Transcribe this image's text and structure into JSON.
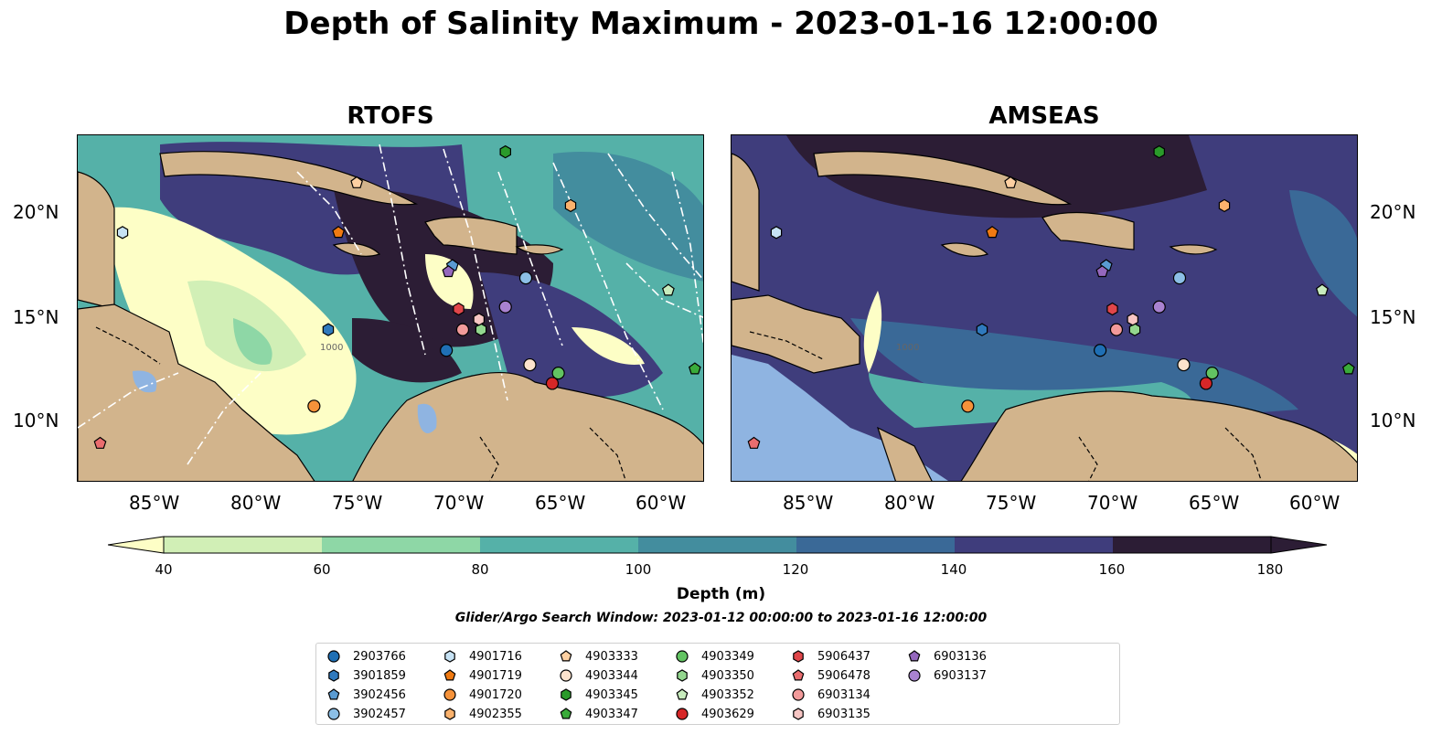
{
  "title": "Depth of Salinity Maximum - 2023-01-16 12:00:00",
  "panels": [
    {
      "title": "RTOFS"
    },
    {
      "title": "AMSEAS"
    }
  ],
  "axes": {
    "lon_ticks": [
      "85°W",
      "80°W",
      "75°W",
      "70°W",
      "65°W",
      "60°W"
    ],
    "lat_ticks": [
      "20°N",
      "15°N",
      "10°N"
    ]
  },
  "colorbar": {
    "title": "Depth (m)",
    "ticks": [
      "40",
      "60",
      "80",
      "100",
      "120",
      "140",
      "160",
      "180"
    ],
    "colors": [
      "#fdfec6",
      "#d1efb6",
      "#8ed7a6",
      "#55b1a8",
      "#438d9e",
      "#3a6997",
      "#3f3d7c",
      "#2c1d35"
    ]
  },
  "search_window": "Glider/Argo Search Window: 2023-01-12 00:00:00 to 2023-01-16 12:00:00",
  "contour_label": "1000",
  "legend": [
    {
      "label": "2903766",
      "marker": "circle",
      "color": "#1f6fb4"
    },
    {
      "label": "3901859",
      "marker": "hexagon",
      "color": "#2f79bd"
    },
    {
      "label": "3902456",
      "marker": "pentagon",
      "color": "#5a9bd2"
    },
    {
      "label": "3902457",
      "marker": "circle",
      "color": "#8cbfe6"
    },
    {
      "label": "4901716",
      "marker": "hexagon",
      "color": "#c6e2f4"
    },
    {
      "label": "4901719",
      "marker": "pentagon",
      "color": "#f07a12"
    },
    {
      "label": "4901720",
      "marker": "circle",
      "color": "#f5923a"
    },
    {
      "label": "4902355",
      "marker": "hexagon",
      "color": "#fbb26d"
    },
    {
      "label": "4903333",
      "marker": "pentagon",
      "color": "#fdd0a2"
    },
    {
      "label": "4903344",
      "marker": "circle",
      "color": "#fde3cd"
    },
    {
      "label": "4903345",
      "marker": "hexagon",
      "color": "#2a9a2a"
    },
    {
      "label": "4903347",
      "marker": "pentagon",
      "color": "#3aab3a"
    },
    {
      "label": "4903349",
      "marker": "circle",
      "color": "#62c362"
    },
    {
      "label": "4903350",
      "marker": "hexagon",
      "color": "#93d68e"
    },
    {
      "label": "4903352",
      "marker": "pentagon",
      "color": "#c8ecbd"
    },
    {
      "label": "4903629",
      "marker": "circle",
      "color": "#d62728"
    },
    {
      "label": "5906437",
      "marker": "hexagon",
      "color": "#e0464a"
    },
    {
      "label": "5906478",
      "marker": "pentagon",
      "color": "#ea6d6f"
    },
    {
      "label": "6903134",
      "marker": "circle",
      "color": "#f29a9a"
    },
    {
      "label": "6903135",
      "marker": "hexagon",
      "color": "#f7c6c4"
    },
    {
      "label": "6903136",
      "marker": "pentagon",
      "color": "#9467bd"
    },
    {
      "label": "6903137",
      "marker": "circle",
      "color": "#a982d0"
    }
  ],
  "map_extent": {
    "lon": [
      -89,
      -58.2
    ],
    "lat": [
      7,
      23.8
    ]
  },
  "floats": [
    {
      "id": "2903766",
      "lon": -70.9,
      "lat": 13.4
    },
    {
      "id": "3901859",
      "lon": -76.7,
      "lat": 14.4
    },
    {
      "id": "3902456",
      "lon": -70.6,
      "lat": 17.5
    },
    {
      "id": "3902457",
      "lon": -67.0,
      "lat": 16.9
    },
    {
      "id": "4901716",
      "lon": -86.8,
      "lat": 19.1
    },
    {
      "id": "4901719",
      "lon": -76.2,
      "lat": 19.1
    },
    {
      "id": "4901720",
      "lon": -77.4,
      "lat": 10.7
    },
    {
      "id": "4902355",
      "lon": -64.8,
      "lat": 20.4
    },
    {
      "id": "4903333",
      "lon": -75.3,
      "lat": 21.5
    },
    {
      "id": "4903344",
      "lon": -66.8,
      "lat": 12.7
    },
    {
      "id": "4903345",
      "lon": -68.0,
      "lat": 23.0
    },
    {
      "id": "4903347",
      "lon": -58.7,
      "lat": 12.5
    },
    {
      "id": "4903349",
      "lon": -65.4,
      "lat": 12.3
    },
    {
      "id": "4903350",
      "lon": -69.2,
      "lat": 14.4
    },
    {
      "id": "4903352",
      "lon": -60.0,
      "lat": 16.3
    },
    {
      "id": "4903629",
      "lon": -65.7,
      "lat": 11.8
    },
    {
      "id": "5906437",
      "lon": -70.3,
      "lat": 15.4
    },
    {
      "id": "5906478",
      "lon": -87.9,
      "lat": 8.9
    },
    {
      "id": "6903134",
      "lon": -70.1,
      "lat": 14.4
    },
    {
      "id": "6903135",
      "lon": -69.3,
      "lat": 14.9
    },
    {
      "id": "6903136",
      "lon": -70.8,
      "lat": 17.2
    },
    {
      "id": "6903137",
      "lon": -68.0,
      "lat": 15.5
    }
  ]
}
